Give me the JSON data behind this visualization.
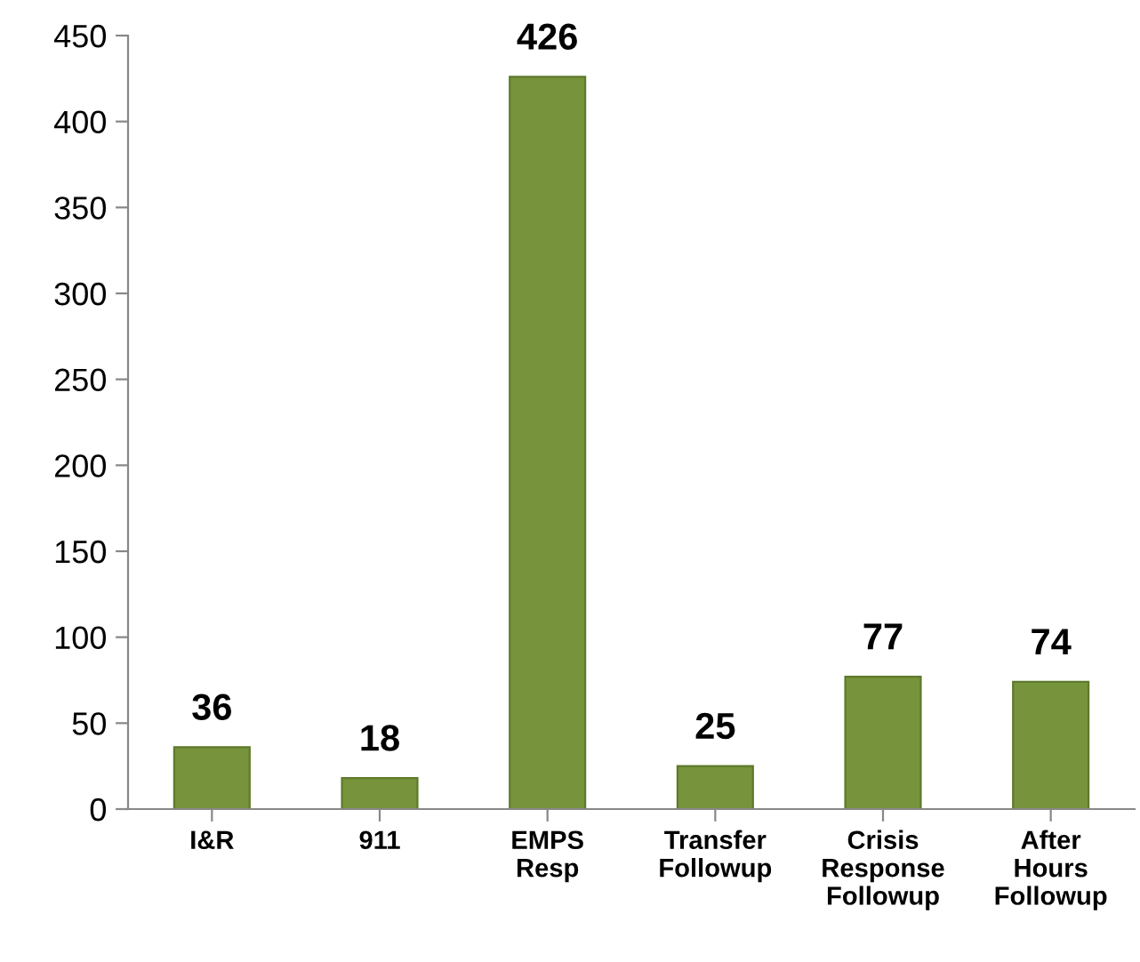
{
  "chart_data": {
    "type": "bar",
    "categories": [
      "I&R",
      "911",
      "EMPS\nResp",
      "Transfer\nFollowup",
      "Crisis\nResponse\nFollowup",
      "After\nHours\nFollowup"
    ],
    "values": [
      36,
      18,
      426,
      25,
      77,
      74
    ],
    "color": "#77933c",
    "ylim": [
      0,
      450
    ],
    "yticks": [
      0,
      50,
      100,
      150,
      200,
      250,
      300,
      350,
      400,
      450
    ],
    "grid": false,
    "legend": false,
    "data_labels": true
  }
}
